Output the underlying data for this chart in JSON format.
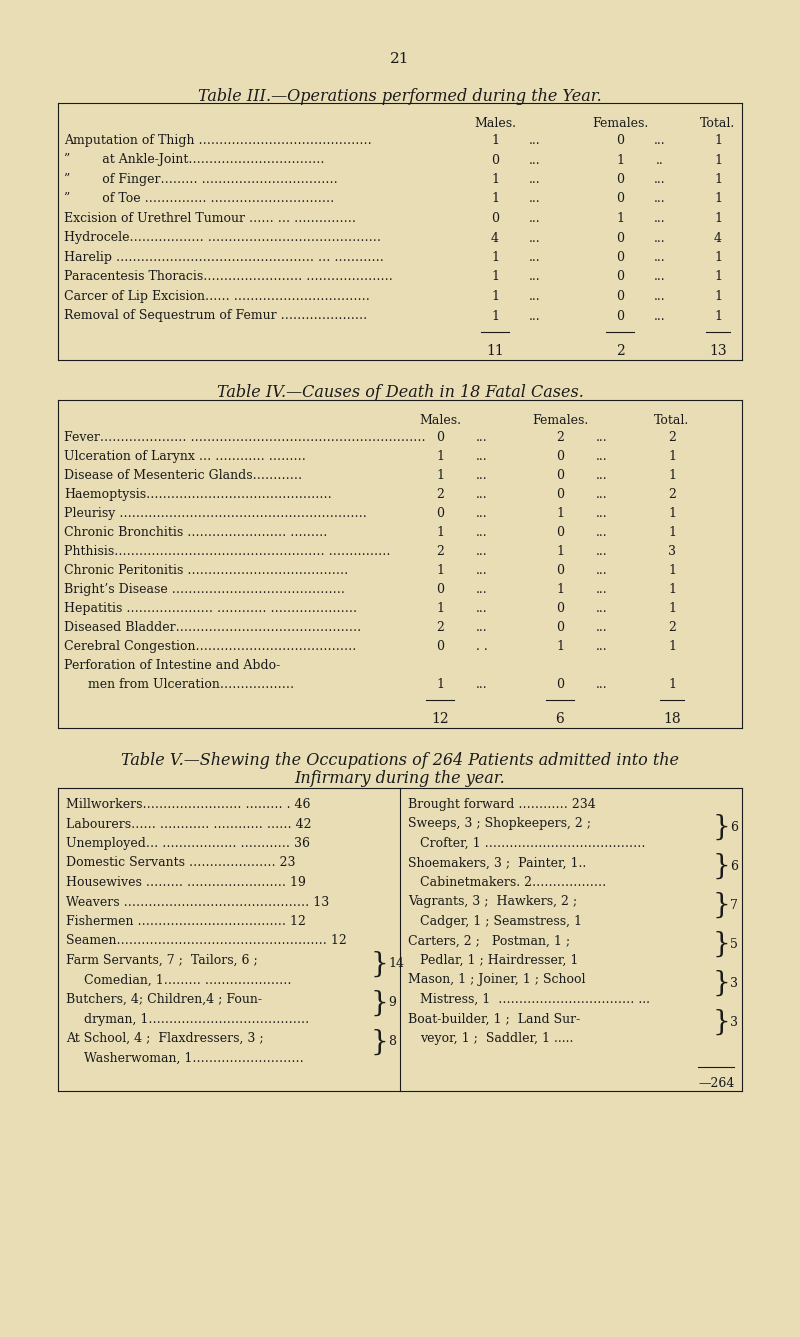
{
  "bg_color": "#e8ddb5",
  "text_color": "#1a1a1a",
  "page_number": "21",
  "table3_title": "Table III.—Operations performed during the Year.",
  "table3_rows": [
    [
      "Amputation of Thigh ……………………………………",
      "1",
      "...",
      "0",
      "...",
      "1"
    ],
    [
      "”        at Ankle-Joint……………………………",
      "0",
      "...",
      "1",
      "..",
      "1"
    ],
    [
      "”        of Finger……… ……………………………",
      "1",
      "...",
      "0",
      "...",
      "1"
    ],
    [
      "”        of Toe …………… …………………………",
      "1",
      "...",
      "0",
      "...",
      "1"
    ],
    [
      "Excision of Urethrel Tumour …… … ……………",
      "0",
      "...",
      "1",
      "...",
      "1"
    ],
    [
      "Hydrocele……………… ……………………………………",
      "4",
      "...",
      "0",
      "...",
      "4"
    ],
    [
      "Harelip ………………………………………… … …………",
      "1",
      "...",
      "0",
      "...",
      "1"
    ],
    [
      "Paracentesis Thoracis…………………… …………………",
      "1",
      "...",
      "0",
      "...",
      "1"
    ],
    [
      "Carcer of Lip Excision…… ……………………………",
      "1",
      "...",
      "0",
      "...",
      "1"
    ],
    [
      "Removal of Sequestrum of Femur …………………",
      "1",
      "...",
      "0",
      "...",
      "1"
    ]
  ],
  "table3_totals": [
    "11",
    "2",
    "13"
  ],
  "table4_title": "Table IV.—Causes of Death in 18 Fatal Cases.",
  "table4_rows": [
    [
      "Fever………………… …………………………………………………",
      "0",
      "...",
      "2",
      "...",
      "2"
    ],
    [
      "Ulceration of Larynx … ………… ………",
      "1",
      "...",
      "0",
      "...",
      "1"
    ],
    [
      "Disease of Mesenteric Glands…………",
      "1",
      "...",
      "0",
      "...",
      "1"
    ],
    [
      "Haemoptysis………………………………………",
      "2",
      "...",
      "0",
      "...",
      "2"
    ],
    [
      "Pleurisy ……………………………………………………",
      "0",
      "...",
      "1",
      "...",
      "1"
    ],
    [
      "Chronic Bronchitis …………………… ………",
      "1",
      "...",
      "0",
      "...",
      "1"
    ],
    [
      "Phthisis…………………………………………… ……………",
      "2",
      "...",
      "1",
      "...",
      "3"
    ],
    [
      "Chronic Peritonitis …………………………………",
      "1",
      "...",
      "0",
      "...",
      "1"
    ],
    [
      "Bright’s Disease ……………………………………",
      "0",
      "...",
      "1",
      "...",
      "1"
    ],
    [
      "Hepatitis ………………… ………… …………………",
      "1",
      "...",
      "0",
      "...",
      "1"
    ],
    [
      "Diseased Bladder………………………………………",
      "2",
      "...",
      "0",
      "...",
      "2"
    ],
    [
      "Cerebral Congestion…………………………………",
      "0",
      ". .",
      "1",
      "...",
      "1"
    ],
    [
      "Perforation of Intestine and Abdo-",
      "",
      "",
      "",
      "",
      ""
    ],
    [
      "      men from Ulceration………………",
      "1",
      "...",
      "0",
      "...",
      "1"
    ]
  ],
  "table4_totals": [
    "12",
    "6",
    "18"
  ],
  "table5_title": "Table V.—Shewing the Occupations of 264 Patients admitted into the",
  "table5_title2": "Infirmary during the year."
}
